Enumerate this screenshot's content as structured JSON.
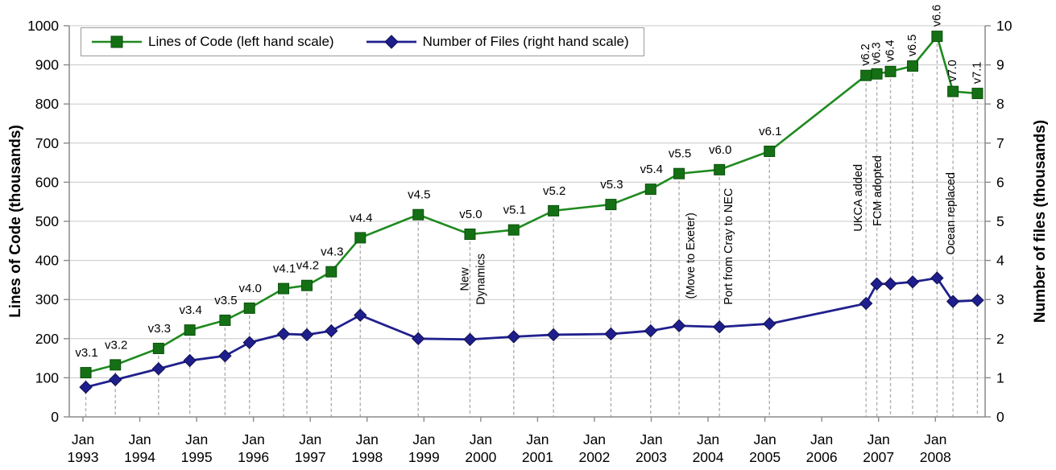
{
  "chart_data": {
    "type": "line",
    "x_encoding": "t = years after Jan 1993",
    "left_axis": {
      "title": "Lines of Code (thousands)",
      "min": 0,
      "max": 1000,
      "ticks": [
        0,
        100,
        200,
        300,
        400,
        500,
        600,
        700,
        800,
        900,
        1000
      ]
    },
    "right_axis": {
      "title": "Number of files (thousands)",
      "min": 0,
      "max": 10,
      "ticks": [
        0,
        1,
        2,
        3,
        4,
        5,
        6,
        7,
        8,
        9,
        10
      ]
    },
    "x_axis": {
      "month_label": "Jan",
      "years": [
        "1993",
        "1994",
        "1995",
        "1996",
        "1997",
        "1998",
        "1999",
        "2000",
        "2001",
        "2002",
        "2003",
        "2004",
        "2005",
        "2006",
        "2007",
        "2008"
      ]
    },
    "legend": [
      {
        "label": "Lines of Code (left hand scale)",
        "marker": "square"
      },
      {
        "label": "Number of Files (right hand scale)",
        "marker": "diamond"
      }
    ],
    "points": [
      {
        "version": "v3.1",
        "t": 0.05,
        "loc": 113,
        "files": 0.76,
        "rot": false
      },
      {
        "version": "v3.2",
        "t": 0.57,
        "loc": 133,
        "files": 0.95,
        "rot": false
      },
      {
        "version": "v3.3",
        "t": 1.33,
        "loc": 175,
        "files": 1.23,
        "rot": false
      },
      {
        "version": "v3.4",
        "t": 1.88,
        "loc": 222,
        "files": 1.44,
        "rot": false
      },
      {
        "version": "v3.5",
        "t": 2.5,
        "loc": 247,
        "files": 1.56,
        "rot": false
      },
      {
        "version": "v4.0",
        "t": 2.93,
        "loc": 278,
        "files": 1.9,
        "rot": false
      },
      {
        "version": "v4.1",
        "t": 3.53,
        "loc": 328,
        "files": 2.12,
        "rot": false
      },
      {
        "version": "v4.2",
        "t": 3.94,
        "loc": 336,
        "files": 2.1,
        "rot": false
      },
      {
        "version": "v4.3",
        "t": 4.37,
        "loc": 371,
        "files": 2.2,
        "rot": false
      },
      {
        "version": "v4.4",
        "t": 4.88,
        "loc": 458,
        "files": 2.6,
        "rot": false
      },
      {
        "version": "v4.5",
        "t": 5.9,
        "loc": 517,
        "files": 2.0,
        "rot": false
      },
      {
        "version": "v5.0",
        "t": 6.81,
        "loc": 467,
        "files": 1.98,
        "rot": false
      },
      {
        "version": "v5.1",
        "t": 7.58,
        "loc": 478,
        "files": 2.05,
        "rot": false
      },
      {
        "version": "v5.2",
        "t": 8.28,
        "loc": 527,
        "files": 2.1,
        "rot": false
      },
      {
        "version": "v5.3",
        "t": 9.29,
        "loc": 543,
        "files": 2.12,
        "rot": false
      },
      {
        "version": "v5.4",
        "t": 9.99,
        "loc": 582,
        "files": 2.2,
        "rot": false
      },
      {
        "version": "v5.5",
        "t": 10.49,
        "loc": 622,
        "files": 2.33,
        "rot": false
      },
      {
        "version": "v6.0",
        "t": 11.2,
        "loc": 632,
        "files": 2.3,
        "rot": false
      },
      {
        "version": "v6.1",
        "t": 12.08,
        "loc": 679,
        "files": 2.38,
        "rot": false
      },
      {
        "version": "v6.2",
        "t": 13.78,
        "loc": 873,
        "files": 2.9,
        "rot": true
      },
      {
        "version": "v6.3",
        "t": 13.97,
        "loc": 877,
        "files": 3.4,
        "rot": true
      },
      {
        "version": "v6.4",
        "t": 14.21,
        "loc": 883,
        "files": 3.4,
        "rot": true
      },
      {
        "version": "v6.5",
        "t": 14.6,
        "loc": 897,
        "files": 3.45,
        "rot": true
      },
      {
        "version": "v6.6",
        "t": 15.03,
        "loc": 973,
        "files": 3.55,
        "rot": true
      },
      {
        "version": "v7.0",
        "t": 15.31,
        "loc": 832,
        "files": 2.95,
        "rot": true
      },
      {
        "version": "v7.1",
        "t": 15.74,
        "loc": 827,
        "files": 2.98,
        "rot": true
      }
    ],
    "annotations": [
      {
        "lines": [
          "New",
          "Dynamics"
        ],
        "t": 6.87,
        "v": 352
      },
      {
        "lines": [
          "(Move to Exeter)"
        ],
        "t": 10.7,
        "v": 412
      },
      {
        "lines": [
          "Port from Cray to NEC"
        ],
        "t": 11.37,
        "v": 436
      },
      {
        "lines": [
          "UKCA added"
        ],
        "t": 13.65,
        "v": 560
      },
      {
        "lines": [
          "FCM adopted"
        ],
        "t": 13.99,
        "v": 578
      },
      {
        "lines": [
          "Ocean replaced"
        ],
        "t": 15.28,
        "v": 520
      }
    ],
    "style": {
      "loc_line": "#1f8a1f",
      "loc_marker": "#157015",
      "loc_marker_edge": "#0a500a",
      "files_line": "#20208e",
      "files_marker": "#1e1e8c",
      "files_marker_edge": "#10104f",
      "grid": "#c8c8c8",
      "guide": "#b0b0b0",
      "axis": "#8a8a8a",
      "text": "#000000"
    }
  }
}
